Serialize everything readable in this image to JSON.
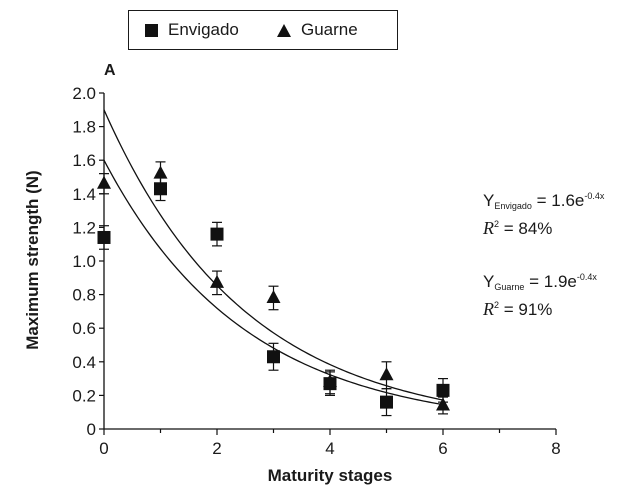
{
  "chart_data": {
    "type": "scatter",
    "panel_label": "A",
    "xlabel": "Maturity stages",
    "ylabel": "Maximum strength (N)",
    "xlim": [
      0,
      8
    ],
    "ylim": [
      0,
      2.0
    ],
    "x_ticks": [
      "0",
      "2",
      "4",
      "6",
      "8"
    ],
    "y_ticks": [
      "0",
      "0.2",
      "0.4",
      "0.6",
      "0.8",
      "1.0",
      "1.2",
      "1.4",
      "1.6",
      "1.8",
      "2.0"
    ],
    "grid": false,
    "legend_position": "top",
    "series": [
      {
        "name": "Envigado",
        "marker": "square",
        "x": [
          0,
          1,
          2,
          3,
          4,
          5,
          6
        ],
        "y": [
          1.14,
          1.43,
          1.16,
          0.43,
          0.27,
          0.16,
          0.23
        ],
        "error": [
          0.07,
          0.07,
          0.07,
          0.08,
          0.07,
          0.08,
          0.07
        ],
        "fit": {
          "a": 1.6,
          "b": -0.4
        }
      },
      {
        "name": "Guarne",
        "marker": "triangle",
        "x": [
          0,
          1,
          2,
          3,
          4,
          5,
          6
        ],
        "y": [
          1.46,
          1.52,
          0.87,
          0.78,
          0.28,
          0.32,
          0.14
        ],
        "error": [
          0.06,
          0.07,
          0.07,
          0.07,
          0.07,
          0.08,
          0.05
        ],
        "fit": {
          "a": 1.9,
          "b": -0.4
        }
      }
    ],
    "annotations": {
      "envigado": {
        "y_sub": "Envigado",
        "eq_main": "= 1.6e",
        "eq_exp": "-0.4x",
        "r2_value": "= 84%"
      },
      "guarne": {
        "y_sub": "Guarne",
        "eq_main": "= 1.9e",
        "eq_exp": "-0.4x",
        "r2_value": "= 91%"
      }
    },
    "colors": {
      "marker": "#111111",
      "line": "#111111"
    }
  },
  "legend": {
    "items": [
      "Envigado",
      "Guarne"
    ]
  }
}
